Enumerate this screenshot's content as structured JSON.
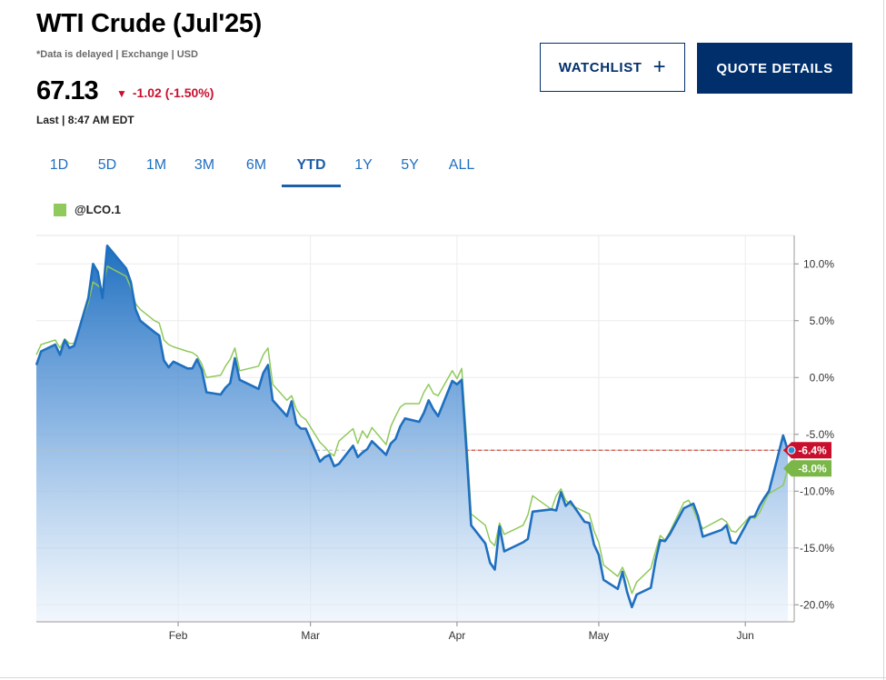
{
  "header": {
    "title": "WTI Crude (Julʹ25)",
    "meta": "*Data is delayed | Exchange | USD",
    "price": "67.13",
    "change": "-1.02 (-1.50%)",
    "change_color": "#c8102e",
    "last": "Last | 8:47 AM EDT"
  },
  "buttons": {
    "watchlist": "WATCHLIST",
    "quote_details": "QUOTE DETAILS",
    "brand_color": "#002f6c"
  },
  "tabs": [
    "1D",
    "5D",
    "1M",
    "3M",
    "6M",
    "YTD",
    "1Y",
    "5Y",
    "ALL"
  ],
  "active_tab": "YTD",
  "legend": {
    "label": "@LCO.1",
    "color": "#90c95c"
  },
  "chart_data": {
    "type": "area",
    "title": "",
    "xlabel": "",
    "ylabel": "",
    "ylim": [
      -21.5,
      12.5
    ],
    "y_ticks": [
      10,
      5,
      0,
      -5,
      -10,
      -15,
      -20
    ],
    "y_tick_labels": [
      "10.0%",
      "5.0%",
      "0.0%",
      "-5.0%",
      "-10.0%",
      "-15.0%",
      "-20.0%"
    ],
    "x_ticks": [
      "2025-02-01",
      "2025-03-01",
      "2025-04-01",
      "2025-05-01",
      "2025-06-01"
    ],
    "x_tick_labels": [
      "Feb",
      "Mar",
      "Apr",
      "May",
      "Jun"
    ],
    "grid": true,
    "reference_level": -6.4,
    "series": [
      {
        "name": "",
        "color": "#1f6fbf",
        "end_label": "-6.4%",
        "end_label_color": "#c8102e",
        "points": [
          [
            "2025-01-02",
            1.1
          ],
          [
            "2025-01-03",
            2.3
          ],
          [
            "2025-01-06",
            2.9
          ],
          [
            "2025-01-07",
            2.0
          ],
          [
            "2025-01-08",
            3.3
          ],
          [
            "2025-01-09",
            2.6
          ],
          [
            "2025-01-10",
            2.8
          ],
          [
            "2025-01-13",
            7.0
          ],
          [
            "2025-01-14",
            10.0
          ],
          [
            "2025-01-15",
            9.3
          ],
          [
            "2025-01-16",
            7.0
          ],
          [
            "2025-01-17",
            11.6
          ],
          [
            "2025-01-21",
            9.6
          ],
          [
            "2025-01-22",
            8.4
          ],
          [
            "2025-01-23",
            6.0
          ],
          [
            "2025-01-24",
            5.0
          ],
          [
            "2025-01-27",
            4.0
          ],
          [
            "2025-01-28",
            3.7
          ],
          [
            "2025-01-29",
            1.5
          ],
          [
            "2025-01-30",
            0.9
          ],
          [
            "2025-01-31",
            1.4
          ],
          [
            "2025-02-03",
            0.8
          ],
          [
            "2025-02-04",
            0.8
          ],
          [
            "2025-02-05",
            1.6
          ],
          [
            "2025-02-06",
            0.7
          ],
          [
            "2025-02-07",
            -1.3
          ],
          [
            "2025-02-10",
            -1.5
          ],
          [
            "2025-02-11",
            -0.9
          ],
          [
            "2025-02-12",
            -0.5
          ],
          [
            "2025-02-13",
            1.7
          ],
          [
            "2025-02-14",
            -0.2
          ],
          [
            "2025-02-18",
            -1.0
          ],
          [
            "2025-02-19",
            0.4
          ],
          [
            "2025-02-20",
            1.1
          ],
          [
            "2025-02-21",
            -2.0
          ],
          [
            "2025-02-24",
            -3.4
          ],
          [
            "2025-02-25",
            -2.1
          ],
          [
            "2025-02-26",
            -4.1
          ],
          [
            "2025-02-27",
            -4.5
          ],
          [
            "2025-02-28",
            -4.5
          ],
          [
            "2025-03-03",
            -7.4
          ],
          [
            "2025-03-04",
            -7.0
          ],
          [
            "2025-03-05",
            -6.8
          ],
          [
            "2025-03-06",
            -7.8
          ],
          [
            "2025-03-07",
            -7.6
          ],
          [
            "2025-03-10",
            -6.0
          ],
          [
            "2025-03-11",
            -7.0
          ],
          [
            "2025-03-12",
            -6.6
          ],
          [
            "2025-03-13",
            -6.3
          ],
          [
            "2025-03-14",
            -5.6
          ],
          [
            "2025-03-17",
            -6.8
          ],
          [
            "2025-03-18",
            -5.8
          ],
          [
            "2025-03-19",
            -5.4
          ],
          [
            "2025-03-20",
            -4.3
          ],
          [
            "2025-03-21",
            -3.6
          ],
          [
            "2025-03-24",
            -3.9
          ],
          [
            "2025-03-25",
            -3.1
          ],
          [
            "2025-03-26",
            -2.0
          ],
          [
            "2025-03-27",
            -2.8
          ],
          [
            "2025-03-28",
            -3.4
          ],
          [
            "2025-03-31",
            -0.3
          ],
          [
            "2025-04-01",
            -0.6
          ],
          [
            "2025-04-02",
            -0.2
          ],
          [
            "2025-04-03",
            -6.4
          ],
          [
            "2025-04-04",
            -13.0
          ],
          [
            "2025-04-07",
            -14.6
          ],
          [
            "2025-04-08",
            -16.3
          ],
          [
            "2025-04-09",
            -16.9
          ],
          [
            "2025-04-10",
            -13.1
          ],
          [
            "2025-04-11",
            -15.3
          ],
          [
            "2025-04-14",
            -14.7
          ],
          [
            "2025-04-15",
            -14.5
          ],
          [
            "2025-04-16",
            -14.2
          ],
          [
            "2025-04-17",
            -11.8
          ],
          [
            "2025-04-21",
            -11.6
          ],
          [
            "2025-04-22",
            -11.7
          ],
          [
            "2025-04-23",
            -10.1
          ],
          [
            "2025-04-24",
            -11.3
          ],
          [
            "2025-04-25",
            -10.9
          ],
          [
            "2025-04-28",
            -12.7
          ],
          [
            "2025-04-29",
            -12.8
          ],
          [
            "2025-04-30",
            -14.7
          ],
          [
            "2025-05-01",
            -15.6
          ],
          [
            "2025-05-02",
            -17.8
          ],
          [
            "2025-05-05",
            -18.6
          ],
          [
            "2025-05-06",
            -17.1
          ],
          [
            "2025-05-07",
            -18.9
          ],
          [
            "2025-05-08",
            -20.2
          ],
          [
            "2025-05-09",
            -19.1
          ],
          [
            "2025-05-12",
            -18.5
          ],
          [
            "2025-05-13",
            -16.1
          ],
          [
            "2025-05-14",
            -14.3
          ],
          [
            "2025-05-15",
            -14.4
          ],
          [
            "2025-05-16",
            -13.8
          ],
          [
            "2025-05-19",
            -11.5
          ],
          [
            "2025-05-20",
            -11.3
          ],
          [
            "2025-05-21",
            -11.1
          ],
          [
            "2025-05-22",
            -12.2
          ],
          [
            "2025-05-23",
            -14.0
          ],
          [
            "2025-05-27",
            -13.4
          ],
          [
            "2025-05-28",
            -13.0
          ],
          [
            "2025-05-29",
            -14.5
          ],
          [
            "2025-05-30",
            -14.6
          ],
          [
            "2025-06-02",
            -12.3
          ],
          [
            "2025-06-03",
            -12.2
          ],
          [
            "2025-06-04",
            -11.3
          ],
          [
            "2025-06-05",
            -10.6
          ],
          [
            "2025-06-06",
            -10.0
          ],
          [
            "2025-06-09",
            -5.1
          ],
          [
            "2025-06-10",
            -6.4
          ]
        ]
      },
      {
        "name": "@LCO.1",
        "color": "#90c95c",
        "end_label": "-8.0%",
        "end_label_color": "#7ab648",
        "points": [
          [
            "2025-01-02",
            2.0
          ],
          [
            "2025-01-03",
            2.9
          ],
          [
            "2025-01-06",
            3.3
          ],
          [
            "2025-01-07",
            2.6
          ],
          [
            "2025-01-08",
            3.4
          ],
          [
            "2025-01-09",
            3.0
          ],
          [
            "2025-01-10",
            3.0
          ],
          [
            "2025-01-13",
            6.6
          ],
          [
            "2025-01-14",
            8.4
          ],
          [
            "2025-01-15",
            8.1
          ],
          [
            "2025-01-16",
            7.7
          ],
          [
            "2025-01-17",
            9.8
          ],
          [
            "2025-01-21",
            8.9
          ],
          [
            "2025-01-22",
            7.9
          ],
          [
            "2025-01-23",
            6.5
          ],
          [
            "2025-01-24",
            6.0
          ],
          [
            "2025-01-27",
            5.0
          ],
          [
            "2025-01-28",
            4.8
          ],
          [
            "2025-01-29",
            3.3
          ],
          [
            "2025-01-30",
            2.9
          ],
          [
            "2025-01-31",
            2.7
          ],
          [
            "2025-02-03",
            2.3
          ],
          [
            "2025-02-04",
            2.2
          ],
          [
            "2025-02-05",
            1.9
          ],
          [
            "2025-02-06",
            1.2
          ],
          [
            "2025-02-07",
            0.0
          ],
          [
            "2025-02-10",
            0.2
          ],
          [
            "2025-02-11",
            1.0
          ],
          [
            "2025-02-12",
            1.6
          ],
          [
            "2025-02-13",
            2.6
          ],
          [
            "2025-02-14",
            0.6
          ],
          [
            "2025-02-18",
            1.0
          ],
          [
            "2025-02-19",
            2.0
          ],
          [
            "2025-02-20",
            2.6
          ],
          [
            "2025-02-21",
            -0.6
          ],
          [
            "2025-02-24",
            -2.0
          ],
          [
            "2025-02-25",
            -1.6
          ],
          [
            "2025-02-26",
            -2.8
          ],
          [
            "2025-02-27",
            -3.4
          ],
          [
            "2025-02-28",
            -3.7
          ],
          [
            "2025-03-03",
            -5.7
          ],
          [
            "2025-03-04",
            -6.1
          ],
          [
            "2025-03-05",
            -6.6
          ],
          [
            "2025-03-06",
            -6.9
          ],
          [
            "2025-03-07",
            -5.6
          ],
          [
            "2025-03-10",
            -4.5
          ],
          [
            "2025-03-11",
            -5.8
          ],
          [
            "2025-03-12",
            -4.7
          ],
          [
            "2025-03-13",
            -5.3
          ],
          [
            "2025-03-14",
            -4.4
          ],
          [
            "2025-03-17",
            -5.9
          ],
          [
            "2025-03-18",
            -4.3
          ],
          [
            "2025-03-19",
            -3.4
          ],
          [
            "2025-03-20",
            -2.6
          ],
          [
            "2025-03-21",
            -2.3
          ],
          [
            "2025-03-24",
            -2.3
          ],
          [
            "2025-03-25",
            -1.3
          ],
          [
            "2025-03-26",
            -0.6
          ],
          [
            "2025-03-27",
            -1.4
          ],
          [
            "2025-03-28",
            -1.6
          ],
          [
            "2025-03-31",
            0.6
          ],
          [
            "2025-04-01",
            -0.1
          ],
          [
            "2025-04-02",
            0.8
          ],
          [
            "2025-04-03",
            -5.2
          ],
          [
            "2025-04-04",
            -12.0
          ],
          [
            "2025-04-07",
            -13.0
          ],
          [
            "2025-04-08",
            -14.4
          ],
          [
            "2025-04-09",
            -14.8
          ],
          [
            "2025-04-10",
            -12.8
          ],
          [
            "2025-04-11",
            -13.8
          ],
          [
            "2025-04-14",
            -13.2
          ],
          [
            "2025-04-15",
            -13.0
          ],
          [
            "2025-04-16",
            -12.1
          ],
          [
            "2025-04-17",
            -10.4
          ],
          [
            "2025-04-21",
            -11.6
          ],
          [
            "2025-04-22",
            -10.4
          ],
          [
            "2025-04-23",
            -9.8
          ],
          [
            "2025-04-24",
            -10.8
          ],
          [
            "2025-04-25",
            -11.2
          ],
          [
            "2025-04-28",
            -11.8
          ],
          [
            "2025-04-29",
            -12.0
          ],
          [
            "2025-04-30",
            -13.5
          ],
          [
            "2025-05-01",
            -14.5
          ],
          [
            "2025-05-02",
            -16.5
          ],
          [
            "2025-05-05",
            -17.5
          ],
          [
            "2025-05-06",
            -16.7
          ],
          [
            "2025-05-07",
            -17.7
          ],
          [
            "2025-05-08",
            -19.0
          ],
          [
            "2025-05-09",
            -18.0
          ],
          [
            "2025-05-12",
            -16.8
          ],
          [
            "2025-05-13",
            -15.3
          ],
          [
            "2025-05-14",
            -13.9
          ],
          [
            "2025-05-15",
            -14.3
          ],
          [
            "2025-05-16",
            -13.6
          ],
          [
            "2025-05-19",
            -11.0
          ],
          [
            "2025-05-20",
            -10.8
          ],
          [
            "2025-05-21",
            -11.6
          ],
          [
            "2025-05-22",
            -12.6
          ],
          [
            "2025-05-23",
            -13.3
          ],
          [
            "2025-05-27",
            -12.4
          ],
          [
            "2025-05-28",
            -12.7
          ],
          [
            "2025-05-29",
            -13.5
          ],
          [
            "2025-05-30",
            -13.6
          ],
          [
            "2025-06-02",
            -12.2
          ],
          [
            "2025-06-03",
            -12.4
          ],
          [
            "2025-06-04",
            -11.9
          ],
          [
            "2025-06-05",
            -11.0
          ],
          [
            "2025-06-06",
            -10.2
          ],
          [
            "2025-06-09",
            -9.5
          ],
          [
            "2025-06-10",
            -8.0
          ]
        ]
      }
    ]
  }
}
